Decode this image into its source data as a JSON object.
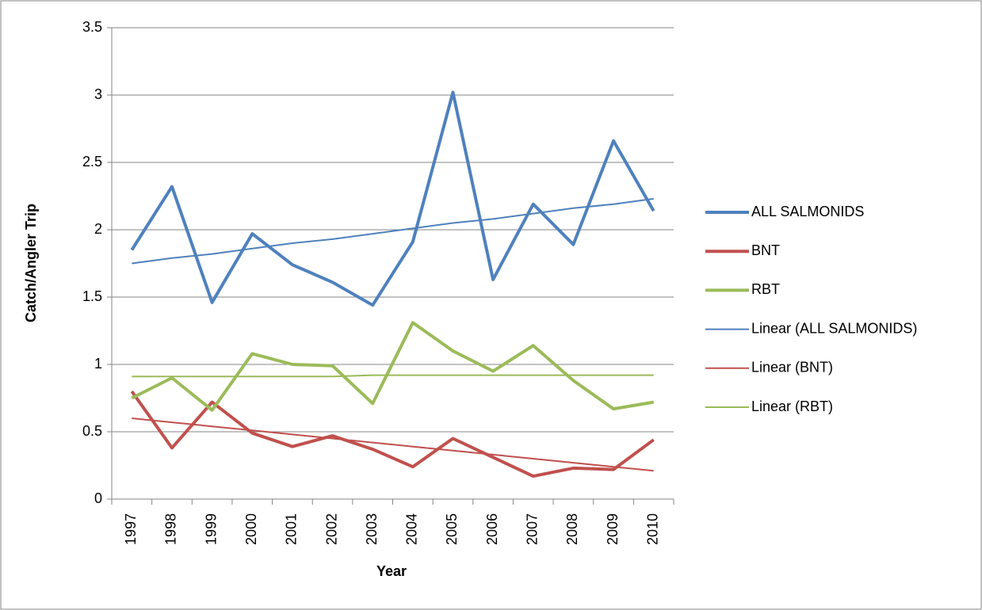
{
  "chart_data": {
    "type": "line",
    "x_label": "Year",
    "y_label": "Catch/Angler Trip",
    "categories": [
      "1997",
      "1998",
      "1999",
      "2000",
      "2001",
      "2002",
      "2003",
      "2004",
      "2005",
      "2006",
      "2007",
      "2008",
      "2009",
      "2010"
    ],
    "ylim": [
      0,
      3.5
    ],
    "yticks": [
      0,
      0.5,
      1,
      1.5,
      2,
      2.5,
      3,
      3.5
    ],
    "grid": true,
    "legend": "right",
    "series": [
      {
        "name": "ALL SALMONIDS",
        "color": "#4f81bd",
        "line_width": 4,
        "values": [
          1.85,
          2.32,
          1.46,
          1.97,
          1.74,
          1.61,
          1.44,
          1.91,
          3.02,
          1.63,
          2.19,
          1.89,
          2.66,
          2.14
        ]
      },
      {
        "name": "BNT",
        "color": "#c0504d",
        "line_width": 4,
        "values": [
          0.8,
          0.38,
          0.72,
          0.49,
          0.39,
          0.47,
          0.37,
          0.24,
          0.45,
          0.31,
          0.17,
          0.23,
          0.22,
          0.44
        ]
      },
      {
        "name": "RBT",
        "color": "#9bbb59",
        "line_width": 4,
        "values": [
          0.75,
          0.9,
          0.66,
          1.08,
          1.0,
          0.99,
          0.71,
          1.31,
          1.1,
          0.95,
          1.14,
          0.88,
          0.67,
          0.72
        ]
      },
      {
        "name": "Linear (ALL SALMONIDS)",
        "color": "#4f81bd",
        "line_width": 2,
        "values": [
          1.75,
          1.79,
          1.82,
          1.86,
          1.9,
          1.93,
          1.97,
          2.01,
          2.05,
          2.08,
          2.12,
          2.16,
          2.19,
          2.23
        ]
      },
      {
        "name": "Linear (BNT)",
        "color": "#c0504d",
        "line_width": 2,
        "values": [
          0.6,
          0.57,
          0.54,
          0.51,
          0.48,
          0.45,
          0.42,
          0.39,
          0.36,
          0.33,
          0.3,
          0.27,
          0.24,
          0.21
        ]
      },
      {
        "name": "Linear (RBT)",
        "color": "#9bbb59",
        "line_width": 2,
        "values": [
          0.91,
          0.91,
          0.91,
          0.91,
          0.91,
          0.91,
          0.92,
          0.92,
          0.92,
          0.92,
          0.92,
          0.92,
          0.92,
          0.92
        ]
      }
    ]
  }
}
